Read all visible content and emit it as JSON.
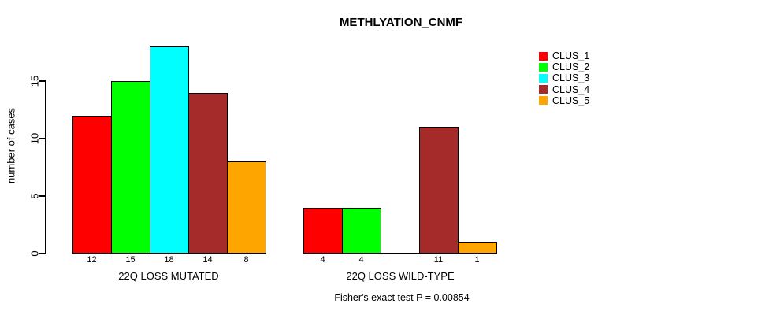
{
  "chart_data": {
    "type": "bar",
    "title": "METHLYATION_CNMF",
    "ylabel": "number of cases",
    "yticks": [
      0,
      5,
      10,
      15
    ],
    "ylim": [
      0,
      18.5
    ],
    "grid": false,
    "legend_position": "right",
    "series": [
      {
        "name": "CLUS_1",
        "color": "#ff0000"
      },
      {
        "name": "CLUS_2",
        "color": "#00ff00"
      },
      {
        "name": "CLUS_3",
        "color": "#00ffff"
      },
      {
        "name": "CLUS_4",
        "color": "#a52a2a"
      },
      {
        "name": "CLUS_5",
        "color": "#ffa500"
      }
    ],
    "groups": [
      {
        "label": "22Q LOSS MUTATED",
        "values": [
          12,
          15,
          18,
          14,
          8
        ],
        "bar_labels": [
          "12",
          "15",
          "18",
          "14",
          "8"
        ]
      },
      {
        "label": "22Q LOSS WILD-TYPE",
        "values": [
          4,
          4,
          0,
          11,
          1
        ],
        "bar_labels": [
          "4",
          "4",
          "",
          "11",
          "1"
        ]
      }
    ],
    "caption": "Fisher's exact test P = 0.00854"
  }
}
